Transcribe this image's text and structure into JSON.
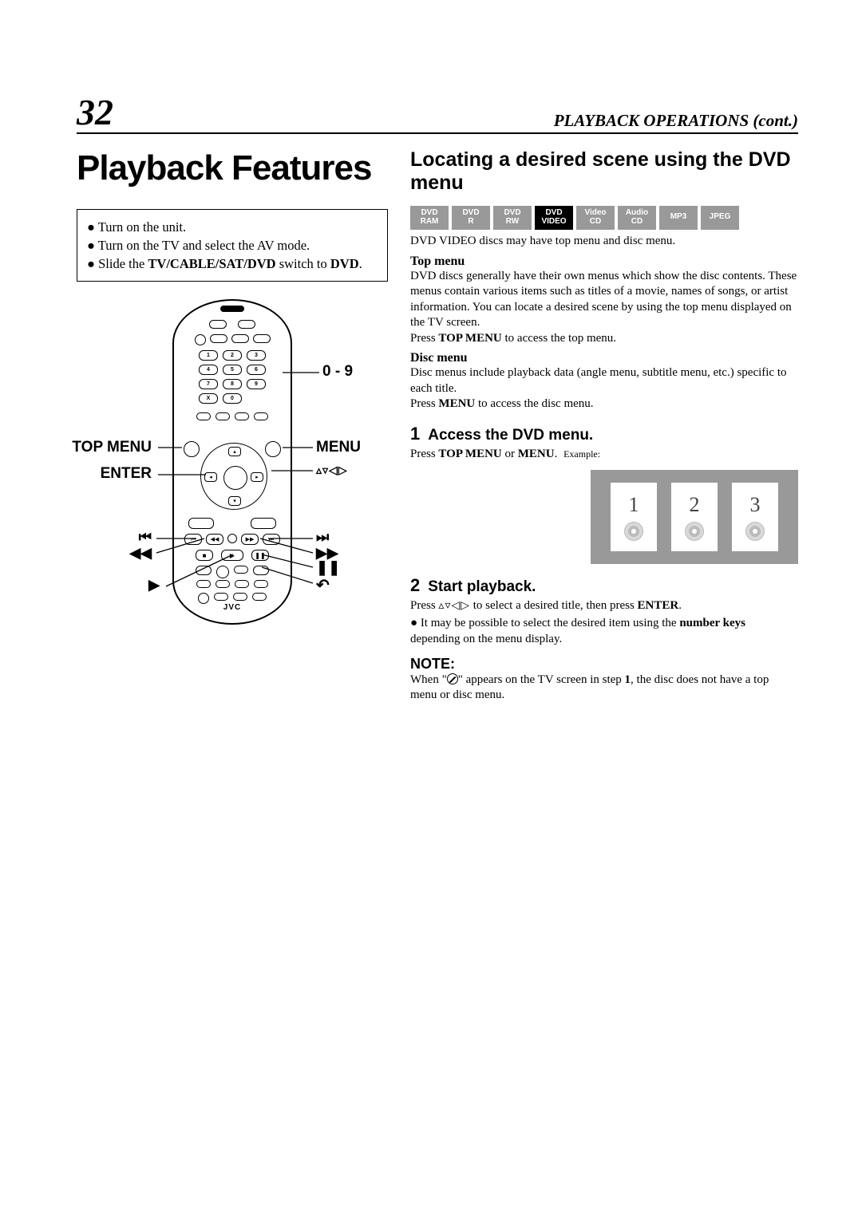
{
  "page_number": "32",
  "header_section": "PLAYBACK OPERATIONS (cont.)",
  "main_title": "Playback Features",
  "prep": {
    "item1": "Turn on the unit.",
    "item2": "Turn on the TV and select the AV mode.",
    "item3_pre": "Slide the ",
    "item3_bold": "TV/CABLE/SAT/DVD",
    "item3_mid": " switch to ",
    "item3_bold2": "DVD",
    "item3_end": "."
  },
  "remote": {
    "callout_numbers": "0 - 9",
    "callout_topmenu": "TOP MENU",
    "callout_enter": "ENTER",
    "callout_menu": "MENU",
    "callout_nav": "▵▿◁▷",
    "callout_prev": "⏮",
    "callout_next": "⏭",
    "callout_rew": "◀◀",
    "callout_ff": "▶▶",
    "callout_pause": "❚❚",
    "callout_play": "▶",
    "callout_return_icon": "↶",
    "brand": "JVC",
    "keypad": [
      "1",
      "2",
      "3",
      "4",
      "5",
      "6",
      "7",
      "8",
      "9",
      "X",
      "0",
      ""
    ]
  },
  "right": {
    "h2": "Locating a desired scene using the DVD menu",
    "badges": [
      {
        "line1": "DVD",
        "line2": "RAM",
        "active": false
      },
      {
        "line1": "DVD",
        "line2": "R",
        "active": false
      },
      {
        "line1": "DVD",
        "line2": "RW",
        "active": false
      },
      {
        "line1": "DVD",
        "line2": "VIDEO",
        "active": true
      },
      {
        "line1": "Video",
        "line2": "CD",
        "active": false
      },
      {
        "line1": "Audio",
        "line2": "CD",
        "active": false
      },
      {
        "line1": "MP3",
        "line2": "",
        "active": false
      },
      {
        "line1": "JPEG",
        "line2": "",
        "active": false
      }
    ],
    "caption": "DVD VIDEO discs may have top menu and disc menu.",
    "topmenu_head": "Top menu",
    "topmenu_body1": "DVD discs generally have their own menus which show the disc contents. These menus contain various items such as titles of a movie, names of songs, or artist information. You can locate a desired scene by using the top menu displayed on the TV screen.",
    "topmenu_body2_pre": "Press ",
    "topmenu_body2_bold": "TOP MENU",
    "topmenu_body2_post": " to access the top menu.",
    "discmenu_head": "Disc menu",
    "discmenu_body1": "Disc menus include playback data (angle menu, subtitle menu, etc.) specific to each title.",
    "discmenu_body2_pre": "Press ",
    "discmenu_body2_bold": "MENU",
    "discmenu_body2_post": " to access the disc menu.",
    "step1_num": "1",
    "step1_title": "Access the DVD menu.",
    "step1_body_pre": "Press ",
    "step1_body_b1": "TOP MENU",
    "step1_body_mid": " or ",
    "step1_body_b2": "MENU",
    "step1_body_end": ". ",
    "example_label": "Example:",
    "menu_items": [
      "1",
      "2",
      "3"
    ],
    "step2_num": "2",
    "step2_title": "Start playback.",
    "step2_body_pre": "Press ",
    "step2_nav": "▵▿◁▷",
    "step2_body_mid": " to select a desired title, then press ",
    "step2_body_bold": "ENTER",
    "step2_body_end": ".",
    "step2_bullet_pre": "It may be possible to select the desired item using the ",
    "step2_bullet_bold": "number keys",
    "step2_bullet_end": " depending on the menu display.",
    "note_head": "NOTE:",
    "note_body_pre": "When \"",
    "note_body_post": "\" appears on the TV screen in step ",
    "note_body_step_bold": "1",
    "note_body_end": ", the disc does not have a top menu or disc menu."
  },
  "colors": {
    "badge_inactive": "#999999",
    "badge_active": "#000000",
    "example_bg": "#999999"
  }
}
